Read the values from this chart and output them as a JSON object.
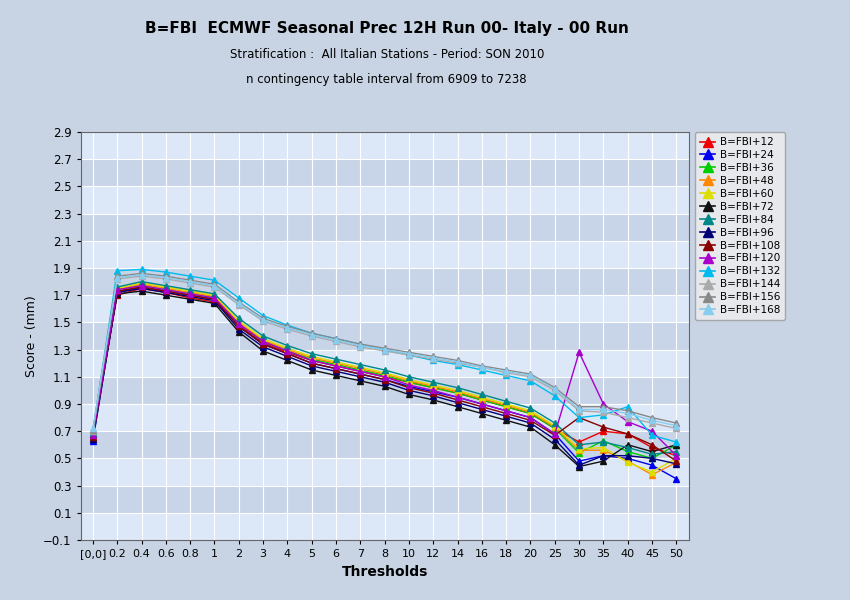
{
  "title": "B=FBI  ECMWF Seasonal Prec 12H Run 00- Italy - 00 Run",
  "subtitle": "Stratification :  All Italian Stations - Period: SON 2010",
  "annotation": "n contingency table interval from 6909 to 7238",
  "xlabel": "Thresholds",
  "ylabel": "Score - (mm)",
  "ylim": [
    -0.1,
    2.9
  ],
  "yticks": [
    -0.1,
    0.1,
    0.3,
    0.5,
    0.7,
    0.9,
    1.1,
    1.3,
    1.5,
    1.7,
    1.9,
    2.1,
    2.3,
    2.5,
    2.7,
    2.9
  ],
  "xtick_labels": [
    "[0,0]",
    "0.2",
    "0.4",
    "0.6",
    "0.8",
    "1",
    "2",
    "3",
    "4",
    "5",
    "6",
    "7",
    "8",
    "10",
    "12",
    "14",
    "16",
    "18",
    "20",
    "25",
    "30",
    "35",
    "40",
    "45",
    "50"
  ],
  "x_positions": [
    0,
    1,
    2,
    3,
    4,
    5,
    6,
    7,
    8,
    9,
    10,
    11,
    12,
    13,
    14,
    15,
    16,
    17,
    18,
    19,
    20,
    21,
    22,
    23,
    24
  ],
  "fig_bg": "#c8d4e4",
  "plot_bg_light": "#d8e4f4",
  "plot_bg_dark": "#c0ccdc",
  "band_light": "#dce8f8",
  "band_dark": "#c8d4e8",
  "series": [
    {
      "label": "B=FBI+12",
      "color": "#ee0000",
      "values": [
        0.68,
        1.7,
        1.75,
        1.72,
        1.68,
        1.65,
        1.48,
        1.35,
        1.28,
        1.22,
        1.18,
        1.14,
        1.1,
        1.06,
        1.02,
        0.98,
        0.93,
        0.88,
        0.83,
        0.72,
        0.62,
        0.7,
        0.68,
        0.58,
        0.52
      ]
    },
    {
      "label": "B=FBI+24",
      "color": "#0000ee",
      "values": [
        0.63,
        1.72,
        1.76,
        1.73,
        1.7,
        1.67,
        1.47,
        1.34,
        1.27,
        1.2,
        1.16,
        1.12,
        1.08,
        1.03,
        0.99,
        0.95,
        0.9,
        0.85,
        0.8,
        0.68,
        0.48,
        0.52,
        0.5,
        0.45,
        0.35
      ]
    },
    {
      "label": "B=FBI+36",
      "color": "#00cc00",
      "values": [
        0.65,
        1.73,
        1.77,
        1.74,
        1.71,
        1.68,
        1.49,
        1.36,
        1.29,
        1.23,
        1.19,
        1.15,
        1.11,
        1.06,
        1.02,
        0.98,
        0.93,
        0.88,
        0.83,
        0.72,
        0.54,
        0.63,
        0.55,
        0.5,
        0.6
      ]
    },
    {
      "label": "B=FBI+48",
      "color": "#ff8800",
      "values": [
        0.66,
        1.74,
        1.78,
        1.75,
        1.72,
        1.69,
        1.5,
        1.37,
        1.3,
        1.24,
        1.2,
        1.16,
        1.12,
        1.07,
        1.03,
        0.99,
        0.94,
        0.89,
        0.84,
        0.73,
        0.56,
        0.56,
        0.48,
        0.38,
        0.47
      ]
    },
    {
      "label": "B=FBI+60",
      "color": "#dddd00",
      "values": [
        0.67,
        1.75,
        1.79,
        1.76,
        1.73,
        1.7,
        1.51,
        1.38,
        1.31,
        1.25,
        1.21,
        1.17,
        1.13,
        1.08,
        1.04,
        1.0,
        0.95,
        0.9,
        0.85,
        0.74,
        0.57,
        0.58,
        0.47,
        0.4,
        0.5
      ]
    },
    {
      "label": "B=FBI+72",
      "color": "#111111",
      "values": [
        0.68,
        1.71,
        1.73,
        1.7,
        1.67,
        1.64,
        1.43,
        1.29,
        1.22,
        1.15,
        1.11,
        1.07,
        1.03,
        0.97,
        0.93,
        0.88,
        0.83,
        0.78,
        0.73,
        0.6,
        0.44,
        0.48,
        0.6,
        0.55,
        0.6
      ]
    },
    {
      "label": "B=FBI+84",
      "color": "#008888",
      "values": [
        0.69,
        1.76,
        1.8,
        1.77,
        1.74,
        1.71,
        1.53,
        1.4,
        1.33,
        1.27,
        1.23,
        1.19,
        1.15,
        1.1,
        1.06,
        1.02,
        0.97,
        0.92,
        0.87,
        0.76,
        0.6,
        0.62,
        0.58,
        0.53,
        0.55
      ]
    },
    {
      "label": "B=FBI+96",
      "color": "#000077",
      "values": [
        0.64,
        1.72,
        1.75,
        1.72,
        1.69,
        1.66,
        1.45,
        1.32,
        1.25,
        1.18,
        1.14,
        1.1,
        1.06,
        1.0,
        0.96,
        0.91,
        0.86,
        0.81,
        0.76,
        0.64,
        0.45,
        0.52,
        0.52,
        0.5,
        0.46
      ]
    },
    {
      "label": "B=FBI+108",
      "color": "#880000",
      "values": [
        0.66,
        1.73,
        1.76,
        1.73,
        1.7,
        1.67,
        1.47,
        1.34,
        1.27,
        1.2,
        1.16,
        1.12,
        1.08,
        1.02,
        0.98,
        0.93,
        0.88,
        0.83,
        0.78,
        0.67,
        0.8,
        0.73,
        0.68,
        0.6,
        0.48
      ]
    },
    {
      "label": "B=FBI+120",
      "color": "#aa00cc",
      "values": [
        0.67,
        1.74,
        1.77,
        1.74,
        1.71,
        1.68,
        1.49,
        1.36,
        1.29,
        1.22,
        1.18,
        1.14,
        1.1,
        1.04,
        1.0,
        0.95,
        0.9,
        0.85,
        0.8,
        0.68,
        1.28,
        0.9,
        0.77,
        0.7,
        0.52
      ]
    },
    {
      "label": "B=FBI+132",
      "color": "#00bbee",
      "values": [
        0.7,
        1.88,
        1.89,
        1.87,
        1.84,
        1.81,
        1.68,
        1.55,
        1.48,
        1.42,
        1.38,
        1.34,
        1.3,
        1.26,
        1.22,
        1.19,
        1.15,
        1.11,
        1.07,
        0.96,
        0.8,
        0.82,
        0.88,
        0.67,
        0.62
      ]
    },
    {
      "label": "B=FBI+144",
      "color": "#aaaaaa",
      "values": [
        0.7,
        1.82,
        1.84,
        1.82,
        1.79,
        1.76,
        1.63,
        1.51,
        1.45,
        1.4,
        1.36,
        1.32,
        1.29,
        1.26,
        1.23,
        1.2,
        1.17,
        1.13,
        1.1,
        1.0,
        0.85,
        0.84,
        0.8,
        0.76,
        0.72
      ]
    },
    {
      "label": "B=FBI+156",
      "color": "#888888",
      "values": [
        0.71,
        1.84,
        1.86,
        1.84,
        1.81,
        1.78,
        1.65,
        1.53,
        1.47,
        1.42,
        1.38,
        1.34,
        1.31,
        1.28,
        1.25,
        1.22,
        1.18,
        1.15,
        1.12,
        1.02,
        0.88,
        0.88,
        0.85,
        0.8,
        0.76
      ]
    },
    {
      "label": "B=FBI+168",
      "color": "#88ccee",
      "values": [
        0.72,
        1.83,
        1.85,
        1.83,
        1.8,
        1.77,
        1.64,
        1.52,
        1.46,
        1.41,
        1.37,
        1.33,
        1.3,
        1.27,
        1.24,
        1.21,
        1.17,
        1.14,
        1.11,
        1.01,
        0.86,
        0.86,
        0.83,
        0.78,
        0.74
      ]
    }
  ]
}
